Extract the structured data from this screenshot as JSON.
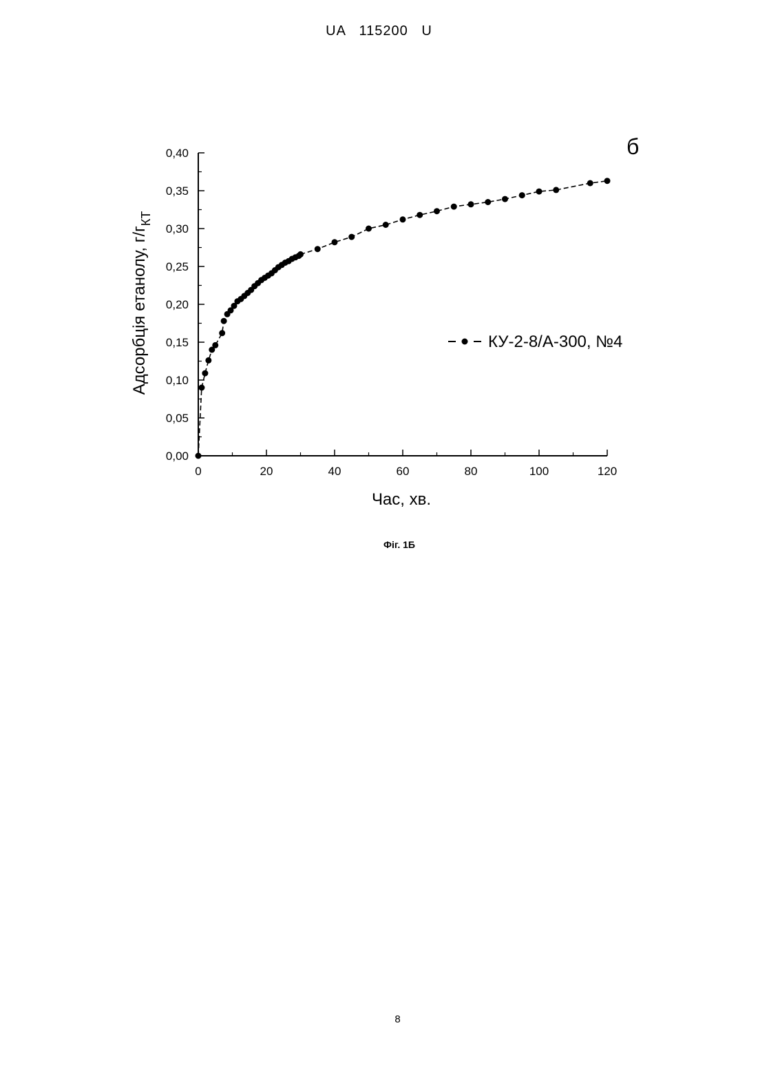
{
  "header": {
    "text": "UA   115200   U"
  },
  "figure": {
    "caption": "Фіг. 1Б",
    "panel_label": "б"
  },
  "page_number": "8",
  "chart_data": {
    "type": "scatter",
    "title": "",
    "xlabel": "Час, хв.",
    "ylabel": "Адсорбція етанолу, г/г",
    "ylabel_subscript": "КТ",
    "xlim": [
      0,
      120
    ],
    "ylim": [
      0,
      0.4
    ],
    "x_ticks": [
      "0",
      "20",
      "40",
      "60",
      "80",
      "100",
      "120"
    ],
    "y_ticks": [
      "0,00",
      "0,05",
      "0,10",
      "0,15",
      "0,20",
      "0,25",
      "0,30",
      "0,35",
      "0,40"
    ],
    "legend_position": "right",
    "grid": false,
    "series": [
      {
        "name": "КУ-2-8/А-300, №4",
        "marker": "circle",
        "line": "dashed",
        "x": [
          0,
          1,
          2,
          3,
          4,
          5,
          7,
          7.5,
          8.5,
          9.5,
          10.5,
          11.5,
          12.5,
          13.5,
          14.5,
          15.5,
          16.5,
          17.5,
          18.5,
          19.5,
          20.5,
          21.5,
          22.5,
          23.5,
          24.5,
          25.5,
          26.5,
          27.5,
          28.5,
          29.5,
          30,
          35,
          40,
          45,
          50,
          55,
          60,
          65,
          70,
          75,
          80,
          85,
          90,
          95,
          100,
          105,
          115,
          120
        ],
        "y": [
          0.0,
          0.09,
          0.109,
          0.126,
          0.14,
          0.146,
          0.162,
          0.178,
          0.187,
          0.192,
          0.198,
          0.204,
          0.207,
          0.211,
          0.215,
          0.219,
          0.224,
          0.228,
          0.232,
          0.235,
          0.238,
          0.241,
          0.245,
          0.249,
          0.252,
          0.255,
          0.257,
          0.26,
          0.262,
          0.264,
          0.266,
          0.273,
          0.282,
          0.289,
          0.3,
          0.305,
          0.312,
          0.318,
          0.323,
          0.329,
          0.332,
          0.335,
          0.339,
          0.344,
          0.349,
          0.351,
          0.36,
          0.363
        ]
      }
    ]
  }
}
